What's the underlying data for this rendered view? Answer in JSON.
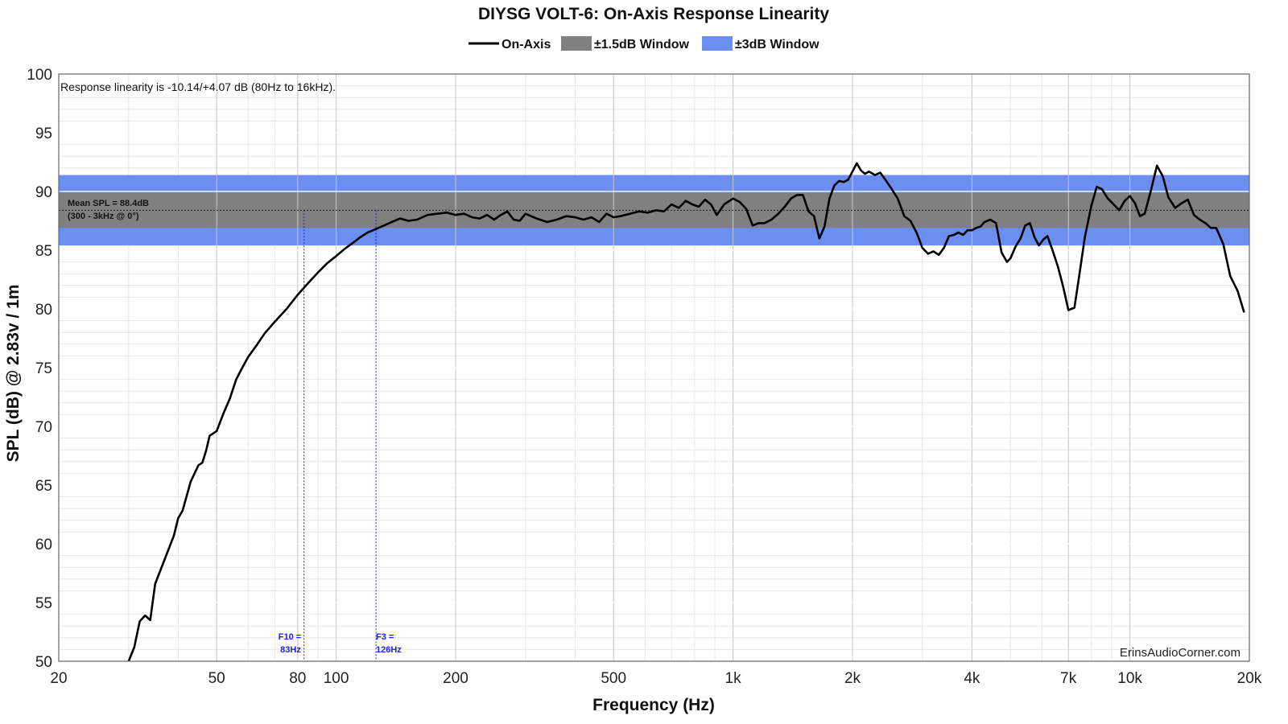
{
  "chart_data": {
    "type": "line",
    "title": "DIYSG VOLT-6: On-Axis Response Linearity",
    "xlabel": "Frequency (Hz)",
    "ylabel": "SPL (dB) @ 2.83v / 1m",
    "x_scale": "log",
    "xlim": [
      20,
      20000
    ],
    "ylim": [
      50,
      100
    ],
    "x_ticks": [
      {
        "value": 20,
        "label": "20"
      },
      {
        "value": 50,
        "label": "50"
      },
      {
        "value": 80,
        "label": "80"
      },
      {
        "value": 100,
        "label": "100"
      },
      {
        "value": 200,
        "label": "200"
      },
      {
        "value": 500,
        "label": "500"
      },
      {
        "value": 1000,
        "label": "1k"
      },
      {
        "value": 2000,
        "label": "2k"
      },
      {
        "value": 4000,
        "label": "4k"
      },
      {
        "value": 7000,
        "label": "7k"
      },
      {
        "value": 10000,
        "label": "10k"
      },
      {
        "value": 20000,
        "label": "20k"
      }
    ],
    "y_ticks": [
      {
        "value": 100,
        "label": "100"
      },
      {
        "value": 95,
        "label": "95"
      },
      {
        "value": 90,
        "label": "90"
      },
      {
        "value": 85,
        "label": "85"
      },
      {
        "value": 80,
        "label": "80"
      },
      {
        "value": 75,
        "label": "75"
      },
      {
        "value": 70,
        "label": "70"
      },
      {
        "value": 65,
        "label": "65"
      },
      {
        "value": 60,
        "label": "60"
      },
      {
        "value": 55,
        "label": "55"
      },
      {
        "value": 50,
        "label": "50"
      }
    ],
    "grid": true,
    "legend_position": "top-center",
    "legend": [
      {
        "label": "On-Axis",
        "kind": "line",
        "color": "#000000"
      },
      {
        "label": "±1.5dB Window",
        "kind": "box",
        "color": "#808080"
      },
      {
        "label": "±3dB Window",
        "kind": "box",
        "color": "#6a8ff0"
      }
    ],
    "annotation": "Response linearity is -10.14/+4.07 dB (80Hz to 16kHz).",
    "mean_line": {
      "value": 88.4,
      "label_line1": "Mean SPL = 88.4dB",
      "label_line2": "(300 - 3kHz @ 0°)"
    },
    "windows": [
      {
        "name": "±3dB Window",
        "low": 85.4,
        "high": 91.4,
        "color": "#6a8ff0"
      },
      {
        "name": "±1.5dB Window",
        "low": 86.9,
        "high": 89.9,
        "color": "#808080"
      }
    ],
    "window_range_hz": [
      20,
      20000
    ],
    "markers": [
      {
        "freq": 83,
        "label_line1": "F10 =",
        "label_line2": "83Hz",
        "color": "#1a1aff"
      },
      {
        "freq": 126,
        "label_line1": "F3 =",
        "label_line2": "126Hz",
        "color": "#1a1aff"
      }
    ],
    "watermark": "ErinsAudioCorner.com",
    "series": [
      {
        "name": "On-Axis",
        "color": "#000000",
        "points": [
          [
            30,
            50.0
          ],
          [
            31,
            51.2
          ],
          [
            32,
            53.4
          ],
          [
            33,
            53.9
          ],
          [
            34,
            53.5
          ],
          [
            35,
            56.6
          ],
          [
            37,
            58.7
          ],
          [
            39,
            60.7
          ],
          [
            40,
            62.2
          ],
          [
            41,
            62.8
          ],
          [
            43,
            65.3
          ],
          [
            45,
            66.7
          ],
          [
            46,
            66.9
          ],
          [
            47,
            67.9
          ],
          [
            48,
            69.2
          ],
          [
            50,
            69.6
          ],
          [
            52,
            71.1
          ],
          [
            54,
            72.4
          ],
          [
            56,
            74.0
          ],
          [
            58,
            75.0
          ],
          [
            60,
            75.9
          ],
          [
            63,
            76.9
          ],
          [
            66,
            77.9
          ],
          [
            70,
            78.9
          ],
          [
            75,
            80.0
          ],
          [
            80,
            81.2
          ],
          [
            85,
            82.2
          ],
          [
            90,
            83.1
          ],
          [
            95,
            83.9
          ],
          [
            100,
            84.5
          ],
          [
            105,
            85.1
          ],
          [
            110,
            85.6
          ],
          [
            115,
            86.1
          ],
          [
            120,
            86.5
          ],
          [
            126,
            86.8
          ],
          [
            132,
            87.1
          ],
          [
            138,
            87.4
          ],
          [
            145,
            87.7
          ],
          [
            152,
            87.5
          ],
          [
            160,
            87.6
          ],
          [
            170,
            88.0
          ],
          [
            180,
            88.1
          ],
          [
            190,
            88.2
          ],
          [
            200,
            88.0
          ],
          [
            210,
            88.1
          ],
          [
            220,
            87.8
          ],
          [
            230,
            87.7
          ],
          [
            240,
            88.0
          ],
          [
            250,
            87.6
          ],
          [
            260,
            88.0
          ],
          [
            270,
            88.3
          ],
          [
            280,
            87.6
          ],
          [
            290,
            87.5
          ],
          [
            300,
            88.1
          ],
          [
            310,
            87.9
          ],
          [
            320,
            87.7
          ],
          [
            340,
            87.4
          ],
          [
            360,
            87.6
          ],
          [
            380,
            87.9
          ],
          [
            400,
            87.8
          ],
          [
            420,
            87.6
          ],
          [
            440,
            87.8
          ],
          [
            460,
            87.4
          ],
          [
            480,
            88.1
          ],
          [
            500,
            87.8
          ],
          [
            520,
            87.9
          ],
          [
            550,
            88.1
          ],
          [
            580,
            88.3
          ],
          [
            610,
            88.2
          ],
          [
            640,
            88.4
          ],
          [
            670,
            88.3
          ],
          [
            700,
            88.9
          ],
          [
            730,
            88.6
          ],
          [
            760,
            89.2
          ],
          [
            790,
            88.9
          ],
          [
            820,
            88.7
          ],
          [
            850,
            89.3
          ],
          [
            880,
            88.9
          ],
          [
            910,
            88.0
          ],
          [
            950,
            88.9
          ],
          [
            1000,
            89.4
          ],
          [
            1040,
            89.1
          ],
          [
            1080,
            88.5
          ],
          [
            1120,
            87.1
          ],
          [
            1160,
            87.3
          ],
          [
            1200,
            87.3
          ],
          [
            1250,
            87.6
          ],
          [
            1300,
            88.1
          ],
          [
            1350,
            88.7
          ],
          [
            1400,
            89.4
          ],
          [
            1450,
            89.7
          ],
          [
            1500,
            89.7
          ],
          [
            1550,
            88.3
          ],
          [
            1600,
            87.9
          ],
          [
            1650,
            86.0
          ],
          [
            1700,
            87.0
          ],
          [
            1750,
            89.4
          ],
          [
            1800,
            90.5
          ],
          [
            1850,
            90.9
          ],
          [
            1900,
            90.8
          ],
          [
            1950,
            91.0
          ],
          [
            2000,
            91.7
          ],
          [
            2050,
            92.4
          ],
          [
            2100,
            91.8
          ],
          [
            2150,
            91.5
          ],
          [
            2200,
            91.7
          ],
          [
            2280,
            91.4
          ],
          [
            2350,
            91.6
          ],
          [
            2420,
            91.0
          ],
          [
            2500,
            90.3
          ],
          [
            2600,
            89.4
          ],
          [
            2700,
            87.9
          ],
          [
            2800,
            87.5
          ],
          [
            2900,
            86.5
          ],
          [
            3000,
            85.2
          ],
          [
            3100,
            84.7
          ],
          [
            3200,
            84.9
          ],
          [
            3300,
            84.6
          ],
          [
            3400,
            85.2
          ],
          [
            3500,
            86.2
          ],
          [
            3600,
            86.3
          ],
          [
            3700,
            86.5
          ],
          [
            3800,
            86.3
          ],
          [
            3900,
            86.7
          ],
          [
            4000,
            86.7
          ],
          [
            4100,
            86.9
          ],
          [
            4200,
            87.0
          ],
          [
            4300,
            87.4
          ],
          [
            4450,
            87.6
          ],
          [
            4600,
            87.3
          ],
          [
            4750,
            84.8
          ],
          [
            4900,
            84.0
          ],
          [
            5000,
            84.3
          ],
          [
            5150,
            85.3
          ],
          [
            5300,
            86.0
          ],
          [
            5450,
            87.1
          ],
          [
            5600,
            87.3
          ],
          [
            5750,
            86.1
          ],
          [
            5900,
            85.4
          ],
          [
            6050,
            85.9
          ],
          [
            6200,
            86.2
          ],
          [
            6400,
            84.9
          ],
          [
            6600,
            83.5
          ],
          [
            6800,
            81.8
          ],
          [
            7000,
            79.9
          ],
          [
            7250,
            80.1
          ],
          [
            7450,
            82.8
          ],
          [
            7700,
            86.1
          ],
          [
            8000,
            88.8
          ],
          [
            8250,
            90.4
          ],
          [
            8500,
            90.2
          ],
          [
            8800,
            89.4
          ],
          [
            9100,
            88.9
          ],
          [
            9400,
            88.4
          ],
          [
            9700,
            89.2
          ],
          [
            10000,
            89.6
          ],
          [
            10300,
            89.0
          ],
          [
            10600,
            87.9
          ],
          [
            10900,
            88.1
          ],
          [
            11300,
            90.1
          ],
          [
            11700,
            92.2
          ],
          [
            12100,
            91.3
          ],
          [
            12500,
            89.5
          ],
          [
            13000,
            88.6
          ],
          [
            13500,
            89.0
          ],
          [
            14000,
            89.3
          ],
          [
            14500,
            88.0
          ],
          [
            15000,
            87.6
          ],
          [
            15500,
            87.3
          ],
          [
            16000,
            86.9
          ],
          [
            16500,
            86.9
          ],
          [
            17200,
            85.5
          ],
          [
            17900,
            82.8
          ],
          [
            18700,
            81.5
          ],
          [
            19400,
            79.7
          ]
        ]
      }
    ]
  }
}
